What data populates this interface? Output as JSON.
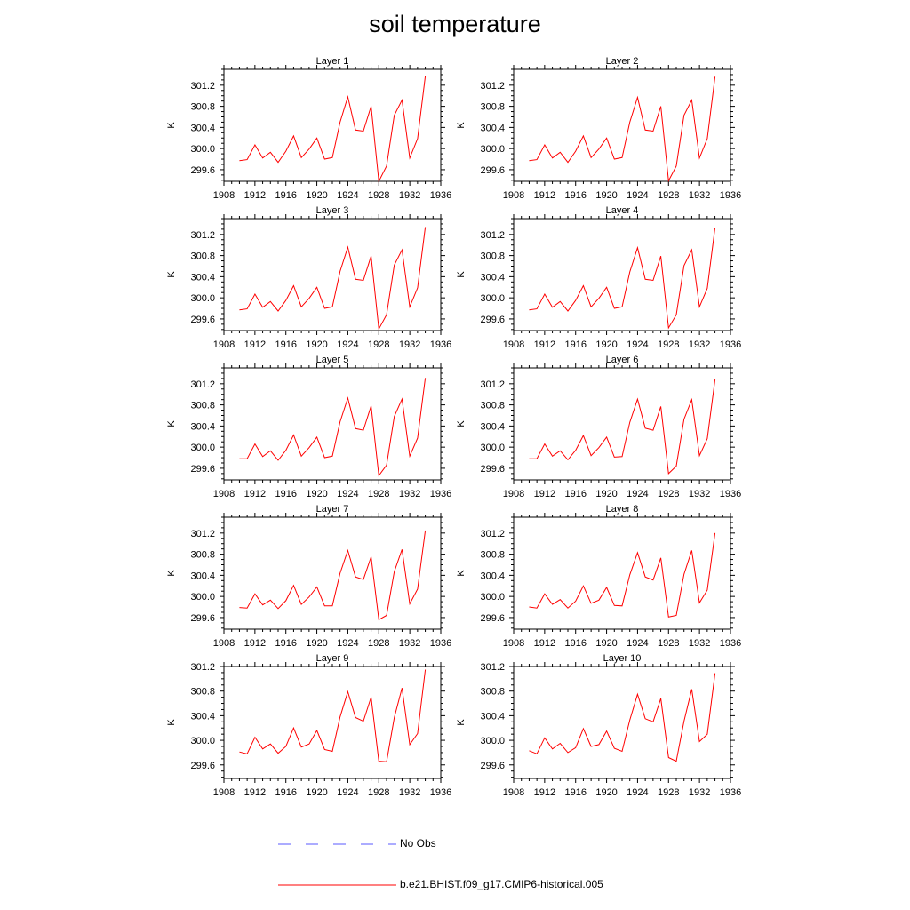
{
  "title": "soil temperature",
  "ylabel": "K",
  "legend": {
    "obs_label": "No Obs",
    "model_label": "b.e21.BHIST.f09_g17.CMIP6-historical.005",
    "obs_color": "#5a5aff",
    "model_color": "#ff0000"
  },
  "chart_data": [
    {
      "type": "line",
      "title": "Layer 1",
      "xlabel": "",
      "ylabel": "K",
      "xlim": [
        1908,
        1936
      ],
      "xticks": [
        1908,
        1912,
        1916,
        1920,
        1924,
        1928,
        1932,
        1936
      ],
      "yticks": [
        "299.6",
        "300.0",
        "300.4",
        "300.8",
        "301.2"
      ],
      "ylim": [
        299.38,
        301.5
      ],
      "grid": false,
      "series": [
        {
          "color": "#ff0000",
          "x": [
            1910,
            1911,
            1912,
            1913,
            1914,
            1915,
            1916,
            1917,
            1918,
            1919,
            1920,
            1921,
            1922,
            1923,
            1924,
            1925,
            1926,
            1927,
            1928,
            1929,
            1930,
            1931,
            1932,
            1933,
            1934
          ],
          "values": [
            299.77,
            299.79,
            300.07,
            299.82,
            299.93,
            299.74,
            299.95,
            300.24,
            299.83,
            299.99,
            300.2,
            299.8,
            299.83,
            300.5,
            300.98,
            300.35,
            300.33,
            300.8,
            299.38,
            299.67,
            300.63,
            300.92,
            299.82,
            300.19,
            301.37
          ]
        }
      ]
    },
    {
      "type": "line",
      "title": "Layer 2",
      "xlabel": "",
      "ylabel": "K",
      "xlim": [
        1908,
        1936
      ],
      "xticks": [
        1908,
        1912,
        1916,
        1920,
        1924,
        1928,
        1932,
        1936
      ],
      "yticks": [
        "299.6",
        "300.0",
        "300.4",
        "300.8",
        "301.2"
      ],
      "ylim": [
        299.38,
        301.5
      ],
      "grid": false,
      "series": [
        {
          "color": "#ff0000",
          "x": [
            1910,
            1911,
            1912,
            1913,
            1914,
            1915,
            1916,
            1917,
            1918,
            1919,
            1920,
            1921,
            1922,
            1923,
            1924,
            1925,
            1926,
            1927,
            1928,
            1929,
            1930,
            1931,
            1932,
            1933,
            1934
          ],
          "values": [
            299.77,
            299.79,
            300.07,
            299.82,
            299.93,
            299.74,
            299.95,
            300.24,
            299.83,
            299.99,
            300.2,
            299.8,
            299.83,
            300.5,
            300.97,
            300.35,
            300.33,
            300.8,
            299.39,
            299.67,
            300.63,
            300.92,
            299.82,
            300.19,
            301.36
          ]
        }
      ]
    },
    {
      "type": "line",
      "title": "Layer 3",
      "xlabel": "",
      "ylabel": "K",
      "xlim": [
        1908,
        1936
      ],
      "xticks": [
        1908,
        1912,
        1916,
        1920,
        1924,
        1928,
        1932,
        1936
      ],
      "yticks": [
        "299.6",
        "300.0",
        "300.4",
        "300.8",
        "301.2"
      ],
      "ylim": [
        299.38,
        301.5
      ],
      "grid": false,
      "series": [
        {
          "color": "#ff0000",
          "x": [
            1910,
            1911,
            1912,
            1913,
            1914,
            1915,
            1916,
            1917,
            1918,
            1919,
            1920,
            1921,
            1922,
            1923,
            1924,
            1925,
            1926,
            1927,
            1928,
            1929,
            1930,
            1931,
            1932,
            1933,
            1934
          ],
          "values": [
            299.77,
            299.79,
            300.07,
            299.82,
            299.93,
            299.75,
            299.95,
            300.23,
            299.83,
            299.99,
            300.2,
            299.8,
            299.83,
            300.5,
            300.96,
            300.35,
            300.33,
            300.79,
            299.41,
            299.68,
            300.62,
            300.91,
            299.83,
            300.19,
            301.34
          ]
        }
      ]
    },
    {
      "type": "line",
      "title": "Layer 4",
      "xlabel": "",
      "ylabel": "K",
      "xlim": [
        1908,
        1936
      ],
      "xticks": [
        1908,
        1912,
        1916,
        1920,
        1924,
        1928,
        1932,
        1936
      ],
      "yticks": [
        "299.6",
        "300.0",
        "300.4",
        "300.8",
        "301.2"
      ],
      "ylim": [
        299.38,
        301.5
      ],
      "grid": false,
      "series": [
        {
          "color": "#ff0000",
          "x": [
            1910,
            1911,
            1912,
            1913,
            1914,
            1915,
            1916,
            1917,
            1918,
            1919,
            1920,
            1921,
            1922,
            1923,
            1924,
            1925,
            1926,
            1927,
            1928,
            1929,
            1930,
            1931,
            1932,
            1933,
            1934
          ],
          "values": [
            299.77,
            299.79,
            300.07,
            299.82,
            299.93,
            299.75,
            299.95,
            300.23,
            299.83,
            299.99,
            300.2,
            299.8,
            299.83,
            300.49,
            300.95,
            300.35,
            300.33,
            300.79,
            299.43,
            299.68,
            300.61,
            300.91,
            299.83,
            300.18,
            301.33
          ]
        }
      ]
    },
    {
      "type": "line",
      "title": "Layer 5",
      "xlabel": "",
      "ylabel": "K",
      "xlim": [
        1908,
        1936
      ],
      "xticks": [
        1908,
        1912,
        1916,
        1920,
        1924,
        1928,
        1932,
        1936
      ],
      "yticks": [
        "299.6",
        "300.0",
        "300.4",
        "300.8",
        "301.2"
      ],
      "ylim": [
        299.38,
        301.5
      ],
      "grid": false,
      "series": [
        {
          "color": "#ff0000",
          "x": [
            1910,
            1911,
            1912,
            1913,
            1914,
            1915,
            1916,
            1917,
            1918,
            1919,
            1920,
            1921,
            1922,
            1923,
            1924,
            1925,
            1926,
            1927,
            1928,
            1929,
            1930,
            1931,
            1932,
            1933,
            1934
          ],
          "values": [
            299.78,
            299.78,
            300.06,
            299.82,
            299.93,
            299.75,
            299.94,
            300.23,
            299.83,
            299.99,
            300.19,
            299.8,
            299.83,
            300.48,
            300.93,
            300.35,
            300.32,
            300.78,
            299.46,
            299.66,
            300.58,
            300.91,
            299.83,
            300.17,
            301.31
          ]
        }
      ]
    },
    {
      "type": "line",
      "title": "Layer 6",
      "xlabel": "",
      "ylabel": "K",
      "xlim": [
        1908,
        1936
      ],
      "xticks": [
        1908,
        1912,
        1916,
        1920,
        1924,
        1928,
        1932,
        1936
      ],
      "yticks": [
        "299.6",
        "300.0",
        "300.4",
        "300.8",
        "301.2"
      ],
      "ylim": [
        299.38,
        301.5
      ],
      "grid": false,
      "series": [
        {
          "color": "#ff0000",
          "x": [
            1910,
            1911,
            1912,
            1913,
            1914,
            1915,
            1916,
            1917,
            1918,
            1919,
            1920,
            1921,
            1922,
            1923,
            1924,
            1925,
            1926,
            1927,
            1928,
            1929,
            1930,
            1931,
            1932,
            1933,
            1934
          ],
          "values": [
            299.78,
            299.78,
            300.06,
            299.83,
            299.93,
            299.76,
            299.94,
            300.22,
            299.84,
            299.99,
            300.19,
            299.81,
            299.82,
            300.47,
            300.91,
            300.36,
            300.32,
            300.77,
            299.5,
            299.64,
            300.53,
            300.9,
            299.84,
            300.16,
            301.28
          ]
        }
      ]
    },
    {
      "type": "line",
      "title": "Layer 7",
      "xlabel": "",
      "ylabel": "K",
      "xlim": [
        1908,
        1936
      ],
      "xticks": [
        1908,
        1912,
        1916,
        1920,
        1924,
        1928,
        1932,
        1936
      ],
      "yticks": [
        "299.6",
        "300.0",
        "300.4",
        "300.8",
        "301.2"
      ],
      "ylim": [
        299.38,
        301.5
      ],
      "grid": false,
      "series": [
        {
          "color": "#ff0000",
          "x": [
            1910,
            1911,
            1912,
            1913,
            1914,
            1915,
            1916,
            1917,
            1918,
            1919,
            1920,
            1921,
            1922,
            1923,
            1924,
            1925,
            1926,
            1927,
            1928,
            1929,
            1930,
            1931,
            1932,
            1933,
            1934
          ],
          "values": [
            299.79,
            299.78,
            300.05,
            299.84,
            299.93,
            299.77,
            299.92,
            300.21,
            299.85,
            299.99,
            300.18,
            299.82,
            299.82,
            300.44,
            300.87,
            300.37,
            300.32,
            300.75,
            299.56,
            299.64,
            300.47,
            300.89,
            299.86,
            300.14,
            301.25
          ]
        }
      ]
    },
    {
      "type": "line",
      "title": "Layer 8",
      "xlabel": "",
      "ylabel": "K",
      "xlim": [
        1908,
        1936
      ],
      "xticks": [
        1908,
        1912,
        1916,
        1920,
        1924,
        1928,
        1932,
        1936
      ],
      "yticks": [
        "299.6",
        "300.0",
        "300.4",
        "300.8",
        "301.2"
      ],
      "ylim": [
        299.38,
        301.5
      ],
      "grid": false,
      "series": [
        {
          "color": "#ff0000",
          "x": [
            1910,
            1911,
            1912,
            1913,
            1914,
            1915,
            1916,
            1917,
            1918,
            1919,
            1920,
            1921,
            1922,
            1923,
            1924,
            1925,
            1926,
            1927,
            1928,
            1929,
            1930,
            1931,
            1932,
            1933,
            1934
          ],
          "values": [
            299.8,
            299.78,
            300.05,
            299.85,
            299.94,
            299.78,
            299.91,
            300.2,
            299.87,
            299.93,
            300.17,
            299.83,
            299.82,
            300.41,
            300.83,
            300.37,
            300.31,
            300.73,
            299.61,
            299.64,
            300.42,
            300.87,
            299.88,
            300.12,
            301.2
          ]
        }
      ]
    },
    {
      "type": "line",
      "title": "Layer 9",
      "xlabel": "",
      "ylabel": "K",
      "xlim": [
        1908,
        1936
      ],
      "xticks": [
        1908,
        1912,
        1916,
        1920,
        1924,
        1928,
        1932,
        1936
      ],
      "yticks": [
        "299.6",
        "300.0",
        "300.4",
        "300.8",
        "301.2"
      ],
      "ylim": [
        299.38,
        301.2
      ],
      "grid": false,
      "series": [
        {
          "color": "#ff0000",
          "x": [
            1910,
            1911,
            1912,
            1913,
            1914,
            1915,
            1916,
            1917,
            1918,
            1919,
            1920,
            1921,
            1922,
            1923,
            1924,
            1925,
            1926,
            1927,
            1928,
            1929,
            1930,
            1931,
            1932,
            1933,
            1934
          ],
          "values": [
            299.81,
            299.78,
            300.05,
            299.86,
            299.94,
            299.79,
            299.9,
            300.2,
            299.89,
            299.94,
            300.16,
            299.85,
            299.82,
            300.38,
            300.79,
            300.37,
            300.31,
            300.7,
            299.66,
            299.65,
            300.37,
            300.85,
            299.93,
            300.11,
            301.15
          ]
        }
      ]
    },
    {
      "type": "line",
      "title": "Layer 10",
      "xlabel": "",
      "ylabel": "K",
      "xlim": [
        1908,
        1936
      ],
      "xticks": [
        1908,
        1912,
        1916,
        1920,
        1924,
        1928,
        1932,
        1936
      ],
      "yticks": [
        "299.6",
        "300.0",
        "300.4",
        "300.8",
        "301.2"
      ],
      "ylim": [
        299.38,
        301.2
      ],
      "grid": false,
      "series": [
        {
          "color": "#ff0000",
          "x": [
            1910,
            1911,
            1912,
            1913,
            1914,
            1915,
            1916,
            1917,
            1918,
            1919,
            1920,
            1921,
            1922,
            1923,
            1924,
            1925,
            1926,
            1927,
            1928,
            1929,
            1930,
            1931,
            1932,
            1933,
            1934
          ],
          "values": [
            299.83,
            299.78,
            300.04,
            299.86,
            299.95,
            299.8,
            299.88,
            300.19,
            299.9,
            299.93,
            300.15,
            299.87,
            299.82,
            300.33,
            300.75,
            300.35,
            300.3,
            300.68,
            299.72,
            299.66,
            300.31,
            300.83,
            299.98,
            300.1,
            301.09
          ]
        }
      ]
    }
  ]
}
